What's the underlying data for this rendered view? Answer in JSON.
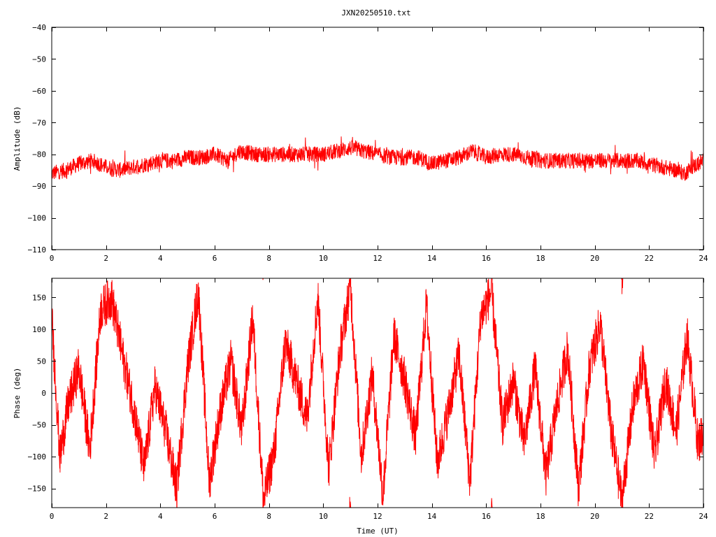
{
  "title": "JXN20250510.txt",
  "colors": {
    "trace": "#ff0000",
    "axes": "#000000",
    "background": "#ffffff"
  },
  "chart_data": [
    {
      "type": "line",
      "name": "amplitude",
      "ylabel": "Amplitude (dB)",
      "xlabel": "",
      "xlim": [
        0,
        24
      ],
      "ylim": [
        -110,
        -40
      ],
      "xticks": [
        0,
        2,
        4,
        6,
        8,
        10,
        12,
        14,
        16,
        18,
        20,
        22,
        24
      ],
      "yticks": [
        -110,
        -100,
        -90,
        -80,
        -70,
        -60,
        -50,
        -40
      ],
      "grid": false,
      "series": [
        {
          "color": "#ff0000",
          "noise_band_db": 2.5,
          "x": [
            0,
            0.5,
            1,
            1.5,
            2,
            2.5,
            3,
            3.5,
            4,
            4.5,
            5,
            5.5,
            6,
            6.5,
            6.9,
            7.5,
            8,
            8.5,
            9,
            9.5,
            10,
            10.5,
            11,
            11.5,
            12,
            12.5,
            13,
            13.5,
            14,
            14.5,
            15,
            15.5,
            16,
            16.5,
            17,
            17.5,
            18,
            18.5,
            19,
            19.5,
            20,
            20.5,
            21,
            21.5,
            22,
            22.5,
            23,
            23.3,
            23.6,
            24
          ],
          "y": [
            -86,
            -85,
            -83,
            -82,
            -84,
            -85,
            -84,
            -83,
            -82,
            -82,
            -81,
            -81,
            -80,
            -82,
            -79,
            -80,
            -80,
            -80,
            -80,
            -80,
            -80,
            -79,
            -78,
            -79,
            -80,
            -81,
            -81,
            -81,
            -83,
            -82,
            -81,
            -79,
            -81,
            -80,
            -80,
            -81,
            -82,
            -82,
            -82,
            -82,
            -82,
            -82,
            -82,
            -82,
            -83,
            -84,
            -85,
            -86,
            -84,
            -82
          ]
        }
      ]
    },
    {
      "type": "line",
      "name": "phase",
      "ylabel": "Phase (deg)",
      "xlabel": "Time (UT)",
      "xlim": [
        0,
        24
      ],
      "ylim": [
        -180,
        180
      ],
      "xticks": [
        0,
        2,
        4,
        6,
        8,
        10,
        12,
        14,
        16,
        18,
        20,
        22,
        24
      ],
      "yticks": [
        -150,
        -100,
        -50,
        0,
        50,
        100,
        150
      ],
      "grid": false,
      "series": [
        {
          "color": "#ff0000",
          "x": [
            0,
            0.3,
            0.6,
            1,
            1.4,
            1.8,
            2.2,
            2.6,
            3,
            3.4,
            3.8,
            4.2,
            4.6,
            5,
            5.4,
            5.8,
            6.2,
            6.6,
            7,
            7.4,
            7.8,
            8.2,
            8.6,
            9,
            9.4,
            9.8,
            10.2,
            10.6,
            11,
            11.4,
            11.8,
            12.2,
            12.6,
            13,
            13.4,
            13.8,
            14.2,
            14.6,
            15,
            15.4,
            15.8,
            16.2,
            16.6,
            17,
            17.4,
            17.8,
            18.2,
            18.6,
            19,
            19.4,
            19.8,
            20.2,
            20.6,
            21,
            21.4,
            21.8,
            22.2,
            22.6,
            23,
            23.4,
            23.8,
            24
          ],
          "y": [
            120,
            -100,
            -20,
            40,
            -90,
            130,
            150,
            60,
            -20,
            -120,
            10,
            -60,
            -150,
            40,
            160,
            -140,
            -30,
            50,
            -60,
            120,
            -170,
            -90,
            80,
            20,
            -40,
            150,
            -120,
            60,
            170,
            -100,
            30,
            -160,
            90,
            20,
            -70,
            140,
            -110,
            -30,
            60,
            -140,
            120,
            160,
            -50,
            20,
            -80,
            40,
            -130,
            -20,
            70,
            -150,
            40,
            110,
            -60,
            -170,
            -20,
            50,
            -100,
            20,
            -60,
            90,
            -80,
            -60
          ]
        }
      ]
    }
  ]
}
